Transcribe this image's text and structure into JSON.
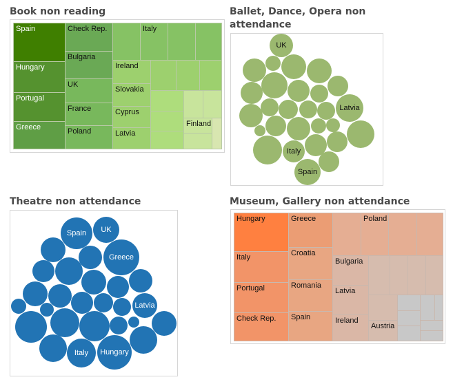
{
  "chart_data": [
    {
      "type": "treemap",
      "title": "Book non reading",
      "color_range": [
        "#3f7f00",
        "#d9e6b0"
      ],
      "labels": [
        "Spain",
        "Hungary",
        "Portugal",
        "Greece",
        "Check Rep.",
        "Bulgaria",
        "UK",
        "France",
        "Poland",
        "Italy",
        "Ireland",
        "Slovakia",
        "Cyprus",
        "Latvia",
        "Finland"
      ]
    },
    {
      "type": "bubble",
      "title": "Ballet, Dance, Opera non attendance",
      "color": "#9bb86f",
      "labels": [
        "UK",
        "Latvia",
        "Italy",
        "Spain"
      ]
    },
    {
      "type": "bubble",
      "title": "Theatre non attendance",
      "color": "#2274b4",
      "labels": [
        "Spain",
        "UK",
        "Greece",
        "Latvia",
        "Italy",
        "Hungary"
      ]
    },
    {
      "type": "treemap",
      "title": "Museum, Gallery non attendance",
      "color_range": [
        "#ff8040",
        "#c8c8c8"
      ],
      "labels": [
        "Hungary",
        "Italy",
        "Portugal",
        "Check Rep.",
        "Greece",
        "Croatia",
        "Romania",
        "Spain",
        "Poland",
        "Bulgaria",
        "Latvia",
        "Ireland",
        "Austria"
      ]
    }
  ]
}
